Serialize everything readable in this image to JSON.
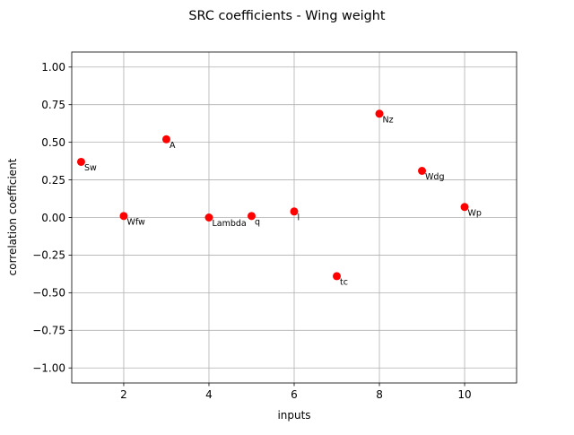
{
  "chart_data": {
    "type": "scatter",
    "title": "SRC coefficients - Wing weight",
    "xlabel": "inputs",
    "ylabel": "correlation coefficient",
    "xlim": [
      0.78,
      11.22
    ],
    "ylim": [
      -1.1,
      1.1
    ],
    "xticks": [
      2,
      4,
      6,
      8,
      10
    ],
    "xtick_labels": [
      "2",
      "4",
      "6",
      "8",
      "10"
    ],
    "yticks": [
      1.0,
      0.75,
      0.5,
      0.25,
      0.0,
      -0.25,
      -0.5,
      -0.75,
      -1.0
    ],
    "ytick_labels": [
      "1.00",
      "0.75",
      "0.50",
      "0.25",
      "0.00",
      "−0.25",
      "−0.50",
      "−0.75",
      "−1.00"
    ],
    "grid": true,
    "marker_color": "#ff0000",
    "points": [
      {
        "label": "Sw",
        "x": 1,
        "y": 0.37
      },
      {
        "label": "Wfw",
        "x": 2,
        "y": 0.01
      },
      {
        "label": "A",
        "x": 3,
        "y": 0.52
      },
      {
        "label": "Lambda",
        "x": 4,
        "y": 0.0
      },
      {
        "label": "q",
        "x": 5,
        "y": 0.01
      },
      {
        "label": "l",
        "x": 6,
        "y": 0.04
      },
      {
        "label": "tc",
        "x": 7,
        "y": -0.39
      },
      {
        "label": "Nz",
        "x": 8,
        "y": 0.69
      },
      {
        "label": "Wdg",
        "x": 9,
        "y": 0.31
      },
      {
        "label": "Wp",
        "x": 10,
        "y": 0.07
      }
    ]
  }
}
